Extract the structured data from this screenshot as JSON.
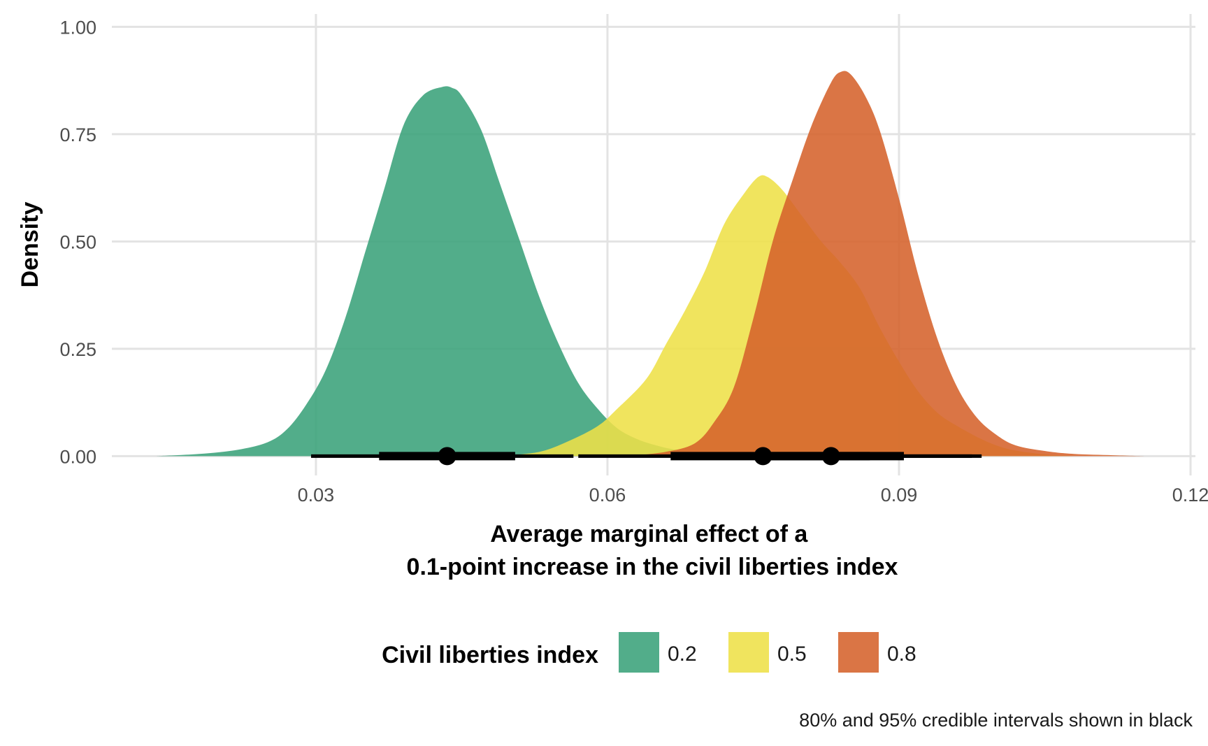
{
  "chart_data": {
    "type": "area",
    "title": "",
    "xlabel_lines": [
      "Average marginal effect of a",
      "0.1-point increase in the civil liberties index"
    ],
    "ylabel": "Density",
    "xlim": [
      0.009,
      0.1205
    ],
    "ylim": [
      -0.045,
      1.03
    ],
    "x_ticks": [
      0.03,
      0.06,
      0.09,
      0.12
    ],
    "x_tick_labels": [
      "0.03",
      "0.06",
      "0.09",
      "0.12"
    ],
    "y_ticks": [
      0,
      0.25,
      0.5,
      0.75,
      1.0
    ],
    "y_tick_labels": [
      "0.00",
      "0.25",
      "0.50",
      "0.75",
      "1.00"
    ],
    "grid": true,
    "legend": {
      "title": "Civil liberties index",
      "position": "bottom",
      "entries": [
        "0.2",
        "0.5",
        "0.8"
      ]
    },
    "caption": "80% and 95% credible intervals shown in black",
    "series": [
      {
        "name": "0.2",
        "color": "#3aa27a",
        "points": [
          [
            0.0135,
            0
          ],
          [
            0.018,
            0.005
          ],
          [
            0.022,
            0.015
          ],
          [
            0.025,
            0.032
          ],
          [
            0.027,
            0.062
          ],
          [
            0.029,
            0.12
          ],
          [
            0.031,
            0.2
          ],
          [
            0.033,
            0.32
          ],
          [
            0.035,
            0.47
          ],
          [
            0.037,
            0.62
          ],
          [
            0.039,
            0.77
          ],
          [
            0.041,
            0.84
          ],
          [
            0.043,
            0.86
          ],
          [
            0.044,
            0.858
          ],
          [
            0.045,
            0.84
          ],
          [
            0.047,
            0.76
          ],
          [
            0.049,
            0.63
          ],
          [
            0.051,
            0.5
          ],
          [
            0.053,
            0.37
          ],
          [
            0.055,
            0.26
          ],
          [
            0.057,
            0.17
          ],
          [
            0.059,
            0.11
          ],
          [
            0.061,
            0.065
          ],
          [
            0.063,
            0.04
          ],
          [
            0.065,
            0.025
          ],
          [
            0.067,
            0.015
          ],
          [
            0.07,
            0.007
          ],
          [
            0.074,
            0.002
          ],
          [
            0.077,
            0
          ]
        ]
      },
      {
        "name": "0.5",
        "color": "#eee048",
        "points": [
          [
            0.049,
            0
          ],
          [
            0.053,
            0.01
          ],
          [
            0.056,
            0.035
          ],
          [
            0.059,
            0.07
          ],
          [
            0.061,
            0.11
          ],
          [
            0.064,
            0.18
          ],
          [
            0.066,
            0.26
          ],
          [
            0.068,
            0.34
          ],
          [
            0.07,
            0.43
          ],
          [
            0.072,
            0.54
          ],
          [
            0.074,
            0.61
          ],
          [
            0.0755,
            0.65
          ],
          [
            0.0765,
            0.65
          ],
          [
            0.078,
            0.62
          ],
          [
            0.08,
            0.56
          ],
          [
            0.082,
            0.5
          ],
          [
            0.084,
            0.45
          ],
          [
            0.086,
            0.39
          ],
          [
            0.088,
            0.3
          ],
          [
            0.09,
            0.22
          ],
          [
            0.092,
            0.15
          ],
          [
            0.094,
            0.1
          ],
          [
            0.096,
            0.07
          ],
          [
            0.098,
            0.045
          ],
          [
            0.1,
            0.025
          ],
          [
            0.102,
            0.013
          ],
          [
            0.105,
            0.004
          ],
          [
            0.108,
            0
          ]
        ]
      },
      {
        "name": "0.8",
        "color": "#d5622b",
        "points": [
          [
            0.062,
            0
          ],
          [
            0.066,
            0.01
          ],
          [
            0.069,
            0.03
          ],
          [
            0.071,
            0.08
          ],
          [
            0.073,
            0.16
          ],
          [
            0.075,
            0.32
          ],
          [
            0.077,
            0.5
          ],
          [
            0.079,
            0.64
          ],
          [
            0.081,
            0.77
          ],
          [
            0.083,
            0.87
          ],
          [
            0.084,
            0.895
          ],
          [
            0.085,
            0.89
          ],
          [
            0.0865,
            0.84
          ],
          [
            0.088,
            0.76
          ],
          [
            0.09,
            0.6
          ],
          [
            0.092,
            0.42
          ],
          [
            0.094,
            0.27
          ],
          [
            0.096,
            0.16
          ],
          [
            0.098,
            0.09
          ],
          [
            0.1,
            0.05
          ],
          [
            0.102,
            0.025
          ],
          [
            0.105,
            0.012
          ],
          [
            0.108,
            0.005
          ],
          [
            0.112,
            0.002
          ],
          [
            0.1155,
            0
          ]
        ]
      }
    ],
    "intervals": [
      {
        "name": "0.2",
        "median": 0.0435,
        "ci80": [
          0.0365,
          0.0505
        ],
        "ci95": [
          0.0295,
          0.0565
        ]
      },
      {
        "name": "0.5",
        "median": 0.076,
        "ci80": [
          0.0665,
          0.087
        ],
        "ci95": [
          0.057,
          0.0975
        ]
      },
      {
        "name": "0.8",
        "median": 0.083,
        "ci80": [
          0.0765,
          0.0905
        ],
        "ci95": [
          0.0685,
          0.0985
        ]
      }
    ]
  }
}
